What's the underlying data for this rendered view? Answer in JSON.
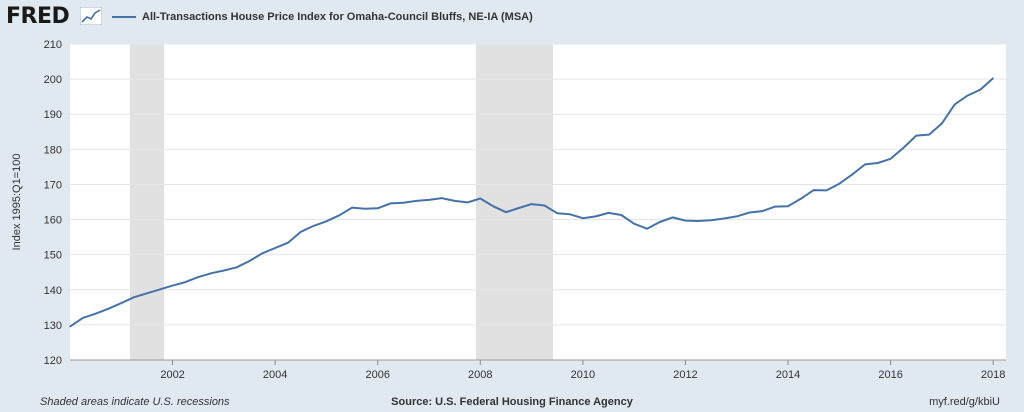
{
  "header": {
    "logo_text": "FRED",
    "logo_icon": "line-graph-icon"
  },
  "colors": {
    "series": "#4572a7",
    "recession": "#e1e1e1",
    "background": "#e1e9f0",
    "plot": "#ffffff",
    "grid": "#e6e6e6"
  },
  "chart_data": {
    "type": "line",
    "title": "",
    "ylabel": "Index 1995:Q1=100",
    "xlabel": "",
    "ylim": [
      120,
      210
    ],
    "xlim": [
      "2000-01-01",
      "2018-04-01"
    ],
    "yticks": [
      120,
      130,
      140,
      150,
      160,
      170,
      180,
      190,
      200,
      210
    ],
    "xticks": [
      "2002",
      "2004",
      "2006",
      "2008",
      "2010",
      "2012",
      "2014",
      "2016",
      "2018"
    ],
    "grid": true,
    "legend": "top-left",
    "recessions": [
      {
        "start": "2001-03-01",
        "end": "2001-11-01"
      },
      {
        "start": "2007-12-01",
        "end": "2009-06-01"
      }
    ],
    "series": [
      {
        "name": "All-Transactions House Price Index for Omaha-Council Bluffs, NE-IA (MSA)",
        "x": [
          "2000-Q1",
          "2000-Q2",
          "2000-Q3",
          "2000-Q4",
          "2001-Q1",
          "2001-Q2",
          "2001-Q3",
          "2001-Q4",
          "2002-Q1",
          "2002-Q2",
          "2002-Q3",
          "2002-Q4",
          "2003-Q1",
          "2003-Q2",
          "2003-Q3",
          "2003-Q4",
          "2004-Q1",
          "2004-Q2",
          "2004-Q3",
          "2004-Q4",
          "2005-Q1",
          "2005-Q2",
          "2005-Q3",
          "2005-Q4",
          "2006-Q1",
          "2006-Q2",
          "2006-Q3",
          "2006-Q4",
          "2007-Q1",
          "2007-Q2",
          "2007-Q3",
          "2007-Q4",
          "2008-Q1",
          "2008-Q2",
          "2008-Q3",
          "2008-Q4",
          "2009-Q1",
          "2009-Q2",
          "2009-Q3",
          "2009-Q4",
          "2010-Q1",
          "2010-Q2",
          "2010-Q3",
          "2010-Q4",
          "2011-Q1",
          "2011-Q2",
          "2011-Q3",
          "2011-Q4",
          "2012-Q1",
          "2012-Q2",
          "2012-Q3",
          "2012-Q4",
          "2013-Q1",
          "2013-Q2",
          "2013-Q3",
          "2013-Q4",
          "2014-Q1",
          "2014-Q2",
          "2014-Q3",
          "2014-Q4",
          "2015-Q1",
          "2015-Q2",
          "2015-Q3",
          "2015-Q4",
          "2016-Q1",
          "2016-Q2",
          "2016-Q3",
          "2016-Q4",
          "2017-Q1",
          "2017-Q2",
          "2017-Q3",
          "2017-Q4",
          "2018-Q1"
        ],
        "values": [
          129.5,
          132.0,
          133.2,
          134.6,
          136.2,
          137.9,
          139.0,
          140.1,
          141.2,
          142.2,
          143.6,
          144.7,
          145.5,
          146.4,
          148.2,
          150.4,
          151.9,
          153.4,
          156.5,
          158.2,
          159.5,
          161.2,
          163.4,
          163.1,
          163.2,
          164.6,
          164.8,
          165.3,
          165.6,
          166.1,
          165.3,
          164.9,
          166.0,
          163.8,
          162.1,
          163.3,
          164.4,
          164.0,
          161.8,
          161.5,
          160.4,
          160.9,
          161.9,
          161.3,
          158.8,
          157.4,
          159.3,
          160.6,
          159.7,
          159.6,
          159.8,
          160.3,
          160.9,
          162.0,
          162.4,
          163.7,
          163.8,
          165.9,
          168.4,
          168.3,
          170.2,
          172.8,
          175.7,
          176.1,
          177.3,
          180.4,
          183.9,
          184.2,
          187.4,
          192.8,
          195.3,
          197.0,
          200.3
        ]
      }
    ]
  },
  "footer": {
    "note": "Shaded areas indicate U.S. recessions",
    "source": "Source: U.S. Federal Housing Finance Agency",
    "link": "myf.red/g/kbiU"
  }
}
